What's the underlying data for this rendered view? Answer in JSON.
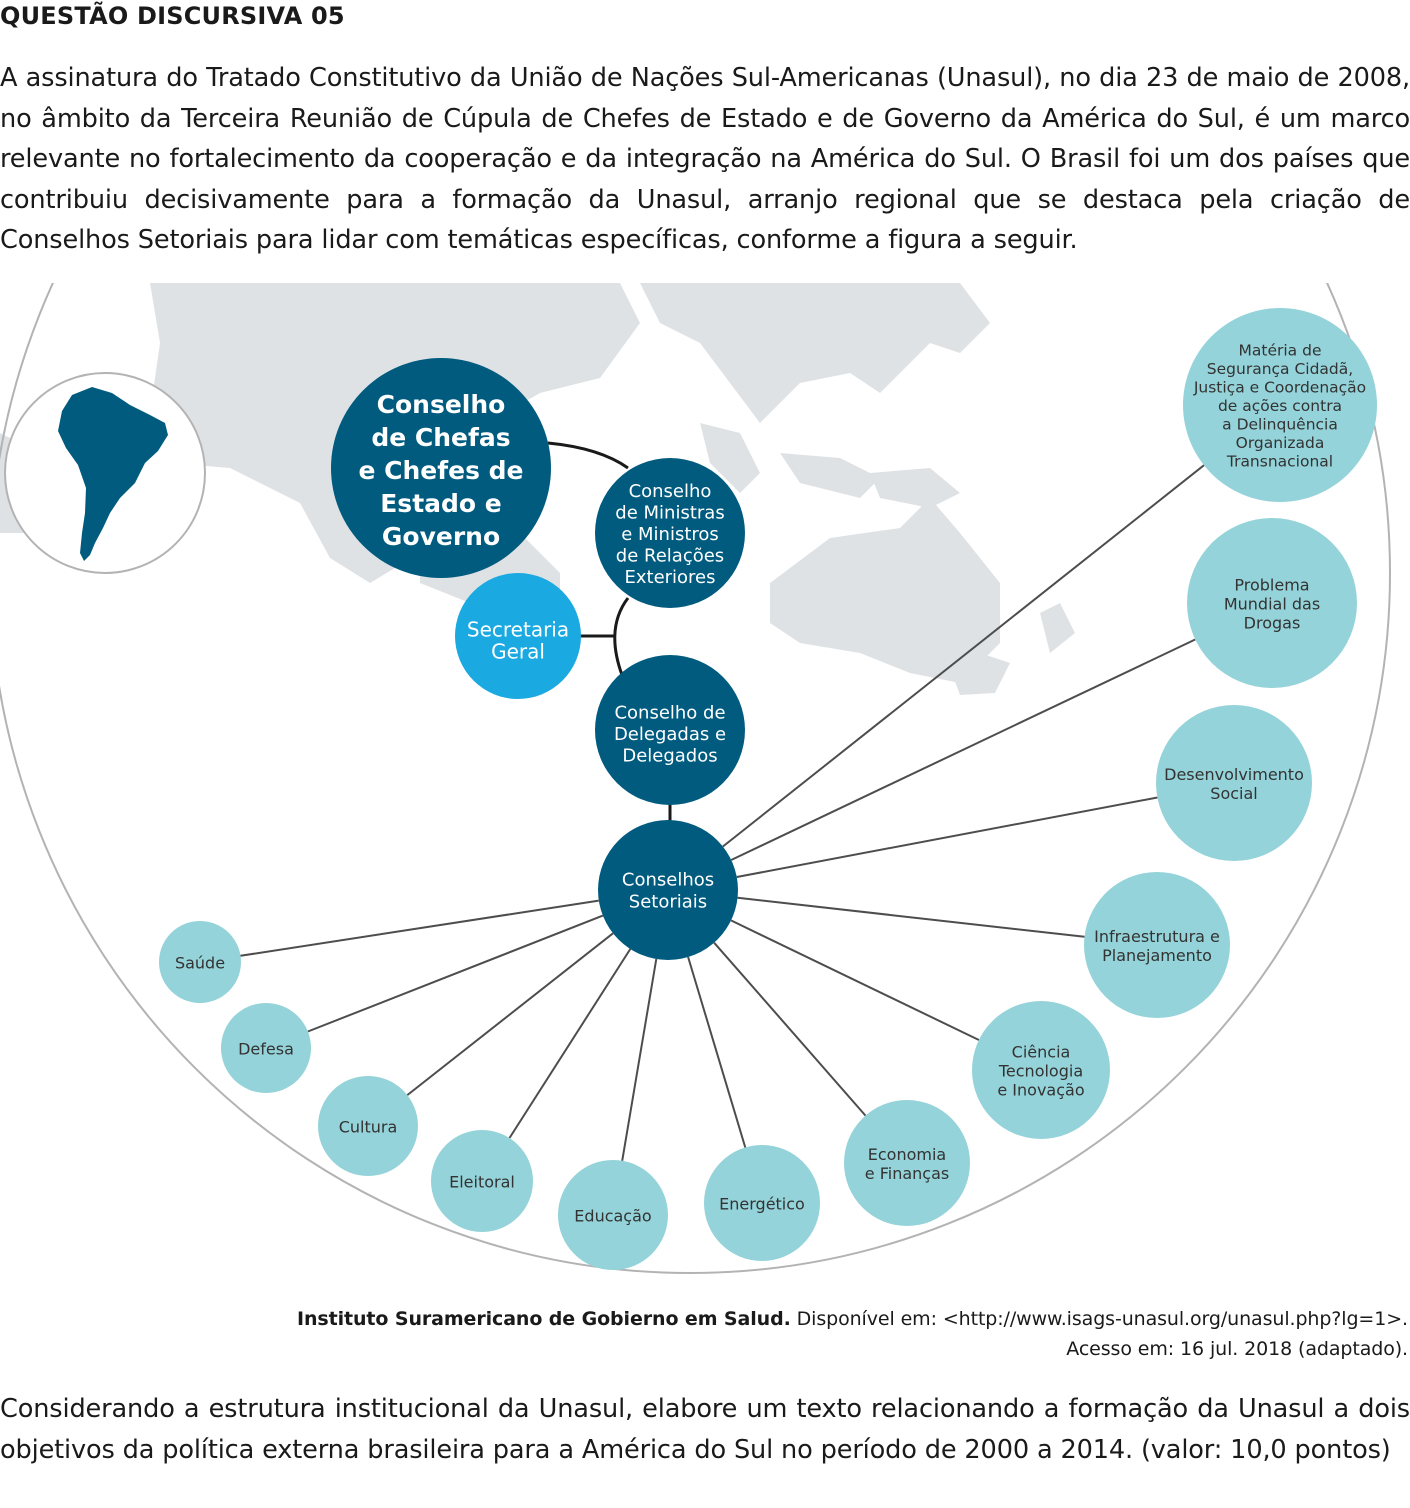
{
  "heading": "QUESTÃO DISCURSIVA 05",
  "intro": "A assinatura do Tratado Constitutivo da União de Nações Sul-Americanas (Unasul), no dia 23 de maio de 2008, no âmbito da Terceira Reunião de Cúpula de Chefes de Estado e de Governo da América do Sul, é um marco relevante no fortalecimento da cooperação e da integração na América do Sul. O Brasil foi um dos países que contribuiu decisivamente para a formação da Unasul, arranjo regional que se destaca pela criação de Conselhos Setoriais para lidar com temáticas específicas, conforme a figura a seguir.",
  "figure": {
    "colors": {
      "dark": "#005b7f",
      "bright": "#1aa9e0",
      "light": "#94d3d9",
      "map": "#dfe2e4",
      "frame": "#b3b3b3"
    },
    "main_nodes": {
      "chefes": [
        "Conselho",
        "de Chefas",
        "e Chefes de",
        "Estado e",
        "Governo"
      ],
      "ministros": [
        "Conselho",
        "de Ministras",
        "e Ministros",
        "de Relações",
        "Exteriores"
      ],
      "secretaria": [
        "Secretaria",
        "Geral"
      ],
      "delegados": [
        "Conselho de",
        "Delegadas e",
        "Delegados"
      ],
      "setoriais": [
        "Conselhos",
        "Setoriais"
      ]
    },
    "sector_councils": [
      {
        "lines": [
          "Matéria de",
          "Segurança Cidadã,",
          "Justiça e Coordenação",
          "de ações contra",
          "a Delinquência",
          "Organizada",
          "Transnacional"
        ]
      },
      {
        "lines": [
          "Problema",
          "Mundial das",
          "Drogas"
        ]
      },
      {
        "lines": [
          "Desenvolvimento",
          "Social"
        ]
      },
      {
        "lines": [
          "Infraestrutura e",
          "Planejamento"
        ]
      },
      {
        "lines": [
          "Ciência",
          "Tecnologia",
          "e Inovação"
        ]
      },
      {
        "lines": [
          "Economia",
          "e Finanças"
        ]
      },
      {
        "lines": [
          "Energético"
        ]
      },
      {
        "lines": [
          "Educação"
        ]
      },
      {
        "lines": [
          "Eleitoral"
        ]
      },
      {
        "lines": [
          "Cultura"
        ]
      },
      {
        "lines": [
          "Defesa"
        ]
      },
      {
        "lines": [
          "Saúde"
        ]
      }
    ]
  },
  "source": {
    "bold": "Instituto Suramericano de Gobierno em Salud.",
    "rest": " Disponível em: <http://www.isags-unasul.org/unasul.php?lg=1>.",
    "line2": "Acesso em: 16 jul. 2018 (adaptado)."
  },
  "question": "Considerando a estrutura institucional da Unasul, elabore um texto relacionando a formação da Unasul a dois objetivos da política externa brasileira para a América do Sul no período de 2000 a 2014. (valor: 10,0 pontos)"
}
